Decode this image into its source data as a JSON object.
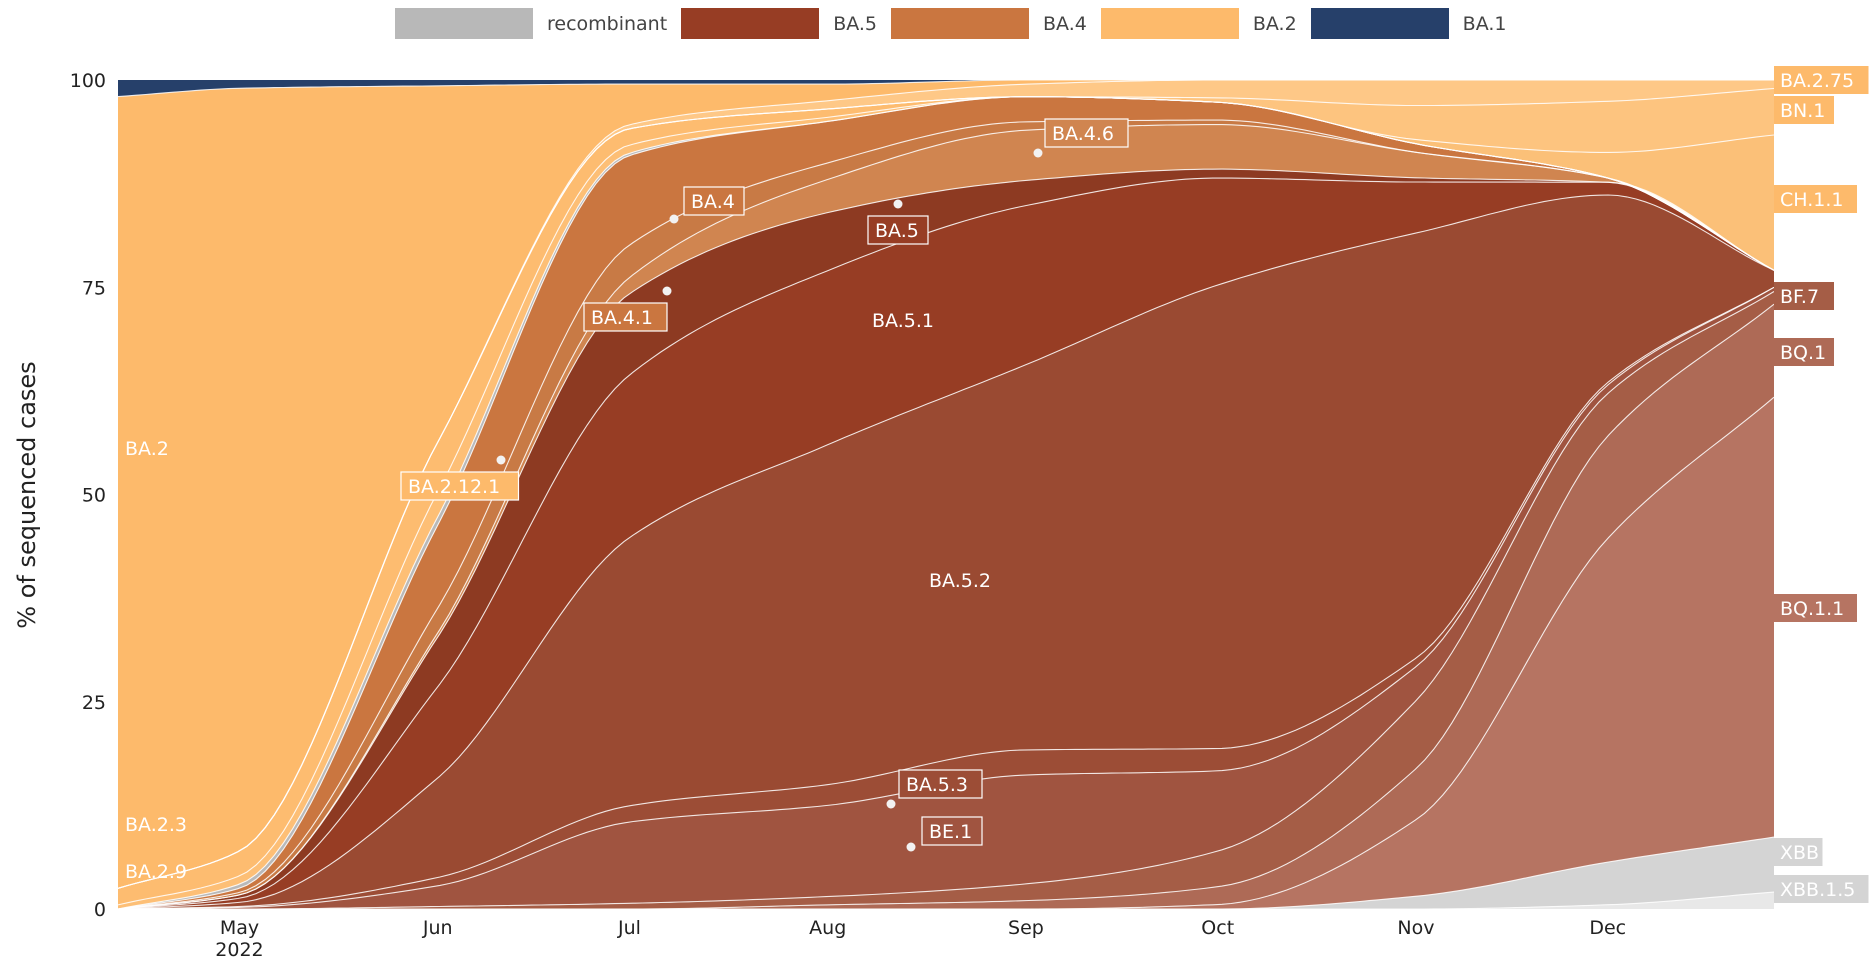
{
  "legend": [
    {
      "label": "recombinant",
      "color": "#b8b8b8"
    },
    {
      "label": "BA.5",
      "color": "#973d24"
    },
    {
      "label": "BA.4",
      "color": "#ca7640"
    },
    {
      "label": "BA.2",
      "color": "#fdba6b"
    },
    {
      "label": "BA.1",
      "color": "#26406a"
    }
  ],
  "y_axis_title": "% of sequenced cases",
  "chart_data": {
    "type": "area",
    "stacked": true,
    "normalized_to": 100,
    "x_ticks": [
      "May\n2022",
      "Jun",
      "Jul",
      "Aug",
      "Sep",
      "Oct",
      "Nov",
      "Dec"
    ],
    "x_dates": [
      "2022-04-12",
      "2022-05-01",
      "2022-06-01",
      "2022-07-01",
      "2022-08-01",
      "2022-09-01",
      "2022-10-01",
      "2022-11-01",
      "2022-12-01",
      "2022-12-27"
    ],
    "ylim": [
      0,
      100
    ],
    "y_ticks": [
      0,
      25,
      50,
      75,
      100
    ],
    "ylabel": "% of sequenced cases",
    "series": [
      {
        "name": "XBB.1.5",
        "group": "recombinant",
        "color": "#e8e8e8",
        "values": [
          0,
          0,
          0,
          0,
          0,
          0,
          0,
          0,
          0.5,
          2
        ]
      },
      {
        "name": "XBB",
        "group": "recombinant",
        "color": "#d4d4d4",
        "values": [
          0,
          0,
          0,
          0,
          0,
          0,
          0,
          1.5,
          5,
          6.5
        ]
      },
      {
        "name": "BQ.1.1",
        "group": "BA.5",
        "color": "#b67462",
        "values": [
          0,
          0,
          0,
          0,
          0,
          0,
          0.5,
          9,
          38,
          52
        ]
      },
      {
        "name": "BQ.1",
        "group": "BA.5",
        "color": "#ae6a56",
        "values": [
          0,
          0,
          0,
          0,
          0.5,
          1,
          2,
          6,
          12,
          11
        ]
      },
      {
        "name": "BF.7",
        "group": "BA.5",
        "color": "#a55d46",
        "values": [
          0,
          0,
          0.3,
          0.7,
          1,
          2,
          4,
          8,
          5,
          1.5
        ]
      },
      {
        "name": "BE.1",
        "group": "BA.5",
        "color": "#a05440",
        "values": [
          0,
          0.2,
          2.5,
          10,
          11,
          13,
          9,
          4,
          1,
          0.5
        ]
      },
      {
        "name": "BA.5.3",
        "group": "BA.5",
        "color": "#9c4d36",
        "values": [
          0,
          0.1,
          1,
          2,
          2.5,
          3,
          2.5,
          1,
          0.3,
          0
        ]
      },
      {
        "name": "BA.5.2",
        "group": "BA.5",
        "color": "#9a4a32",
        "values": [
          0,
          0.5,
          12,
          33,
          41,
          46,
          52,
          50,
          22,
          2
        ]
      },
      {
        "name": "BA.5.1",
        "group": "BA.5",
        "color": "#973d24",
        "values": [
          0,
          0.5,
          11,
          20,
          21,
          19,
          12,
          6,
          1.5,
          0
        ]
      },
      {
        "name": "BA.5",
        "group": "BA.5",
        "color": "#8d3a22",
        "values": [
          0,
          0.4,
          6,
          10,
          7,
          3,
          1,
          0.5,
          0,
          0
        ]
      },
      {
        "name": "BA.4.6",
        "group": "BA.4",
        "color": "#d08550",
        "values": [
          0,
          0,
          0.5,
          2,
          4,
          6,
          5,
          3,
          0.5,
          0
        ]
      },
      {
        "name": "BA.4.1",
        "group": "BA.4",
        "color": "#c87a45",
        "values": [
          0,
          0.3,
          3,
          4,
          2,
          1,
          0.5,
          0,
          0,
          0
        ]
      },
      {
        "name": "BA.4",
        "group": "BA.4",
        "color": "#ca7640",
        "values": [
          0,
          0.5,
          10,
          11,
          5,
          3,
          2,
          1,
          0,
          0
        ]
      },
      {
        "name": "BA.2.12.1",
        "group": "BA.2",
        "color": "#b9b9b9",
        "values": [
          0,
          0.5,
          1,
          0.3,
          0,
          0,
          0,
          0,
          0,
          0
        ]
      },
      {
        "name": "BA.2.9",
        "group": "BA.2",
        "color": "#fdbf76",
        "values": [
          0.5,
          1,
          3,
          1,
          0.5,
          0,
          0,
          0,
          0,
          0
        ]
      },
      {
        "name": "BA.2.3",
        "group": "BA.2",
        "color": "#fdbc70",
        "values": [
          2,
          3,
          6,
          2,
          1,
          0,
          0,
          0,
          0,
          0
        ]
      },
      {
        "name": "CH.1.1",
        "group": "BA.2",
        "color": "#fbc078",
        "values": [
          0,
          0,
          0,
          0,
          0,
          0,
          0,
          0.5,
          3,
          16
        ]
      },
      {
        "name": "BN.1",
        "group": "BA.2",
        "color": "#fdc47f",
        "values": [
          0,
          0,
          0,
          0,
          0,
          0,
          0.5,
          4,
          6,
          5.5
        ]
      },
      {
        "name": "BA.2.75",
        "group": "BA.2",
        "color": "#fec887",
        "values": [
          0,
          0,
          0,
          0.5,
          1,
          1.5,
          2,
          3,
          2.5,
          1
        ]
      },
      {
        "name": "BA.2",
        "group": "BA.2",
        "color": "#fdba6b",
        "values": [
          95.5,
          92,
          43,
          5,
          2,
          0.5,
          0,
          0,
          0,
          0
        ]
      },
      {
        "name": "BA.1",
        "group": "BA.1",
        "color": "#26406a",
        "values": [
          2,
          1,
          0.7,
          0.5,
          0.5,
          0,
          0,
          0,
          0,
          0
        ]
      }
    ],
    "annotations": [
      "BA.2",
      "BA.2.3",
      "BA.2.9",
      "BA.2.12.1",
      "BA.4",
      "BA.4.1",
      "BA.5",
      "BA.4.6",
      "BA.5.1",
      "BA.5.2",
      "BA.5.3",
      "BE.1"
    ],
    "right_labels": [
      {
        "text": "BA.2.75",
        "color": "#fdba6b"
      },
      {
        "text": "BN.1",
        "color": "#fdba6b"
      },
      {
        "text": "CH.1.1",
        "color": "#fdba6b"
      },
      {
        "text": "BF.7",
        "color": "#a55d46"
      },
      {
        "text": "BQ.1",
        "color": "#ae6a56"
      },
      {
        "text": "BQ.1.1",
        "color": "#b67462"
      },
      {
        "text": "XBB",
        "color": "#d4d4d4"
      },
      {
        "text": "XBB.1.5",
        "color": "#d4d4d4"
      }
    ]
  }
}
